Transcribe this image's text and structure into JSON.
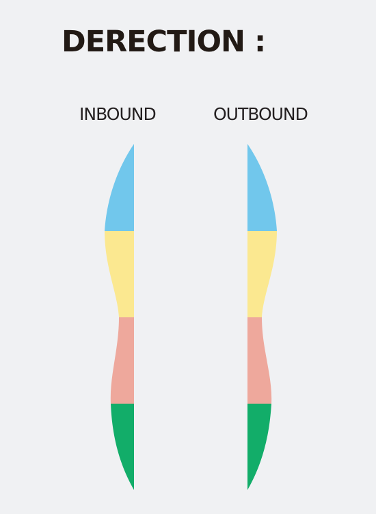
{
  "title": "DERECTION :",
  "columns": [
    {
      "label": "INBOUND"
    },
    {
      "label": "OUTBOUND"
    }
  ],
  "colors": {
    "background": "#f0f1f3",
    "segment_1": "#71c7ec",
    "segment_2": "#fbe890",
    "segment_3": "#eea89c",
    "segment_4": "#12ad69",
    "text": "#221a15"
  }
}
